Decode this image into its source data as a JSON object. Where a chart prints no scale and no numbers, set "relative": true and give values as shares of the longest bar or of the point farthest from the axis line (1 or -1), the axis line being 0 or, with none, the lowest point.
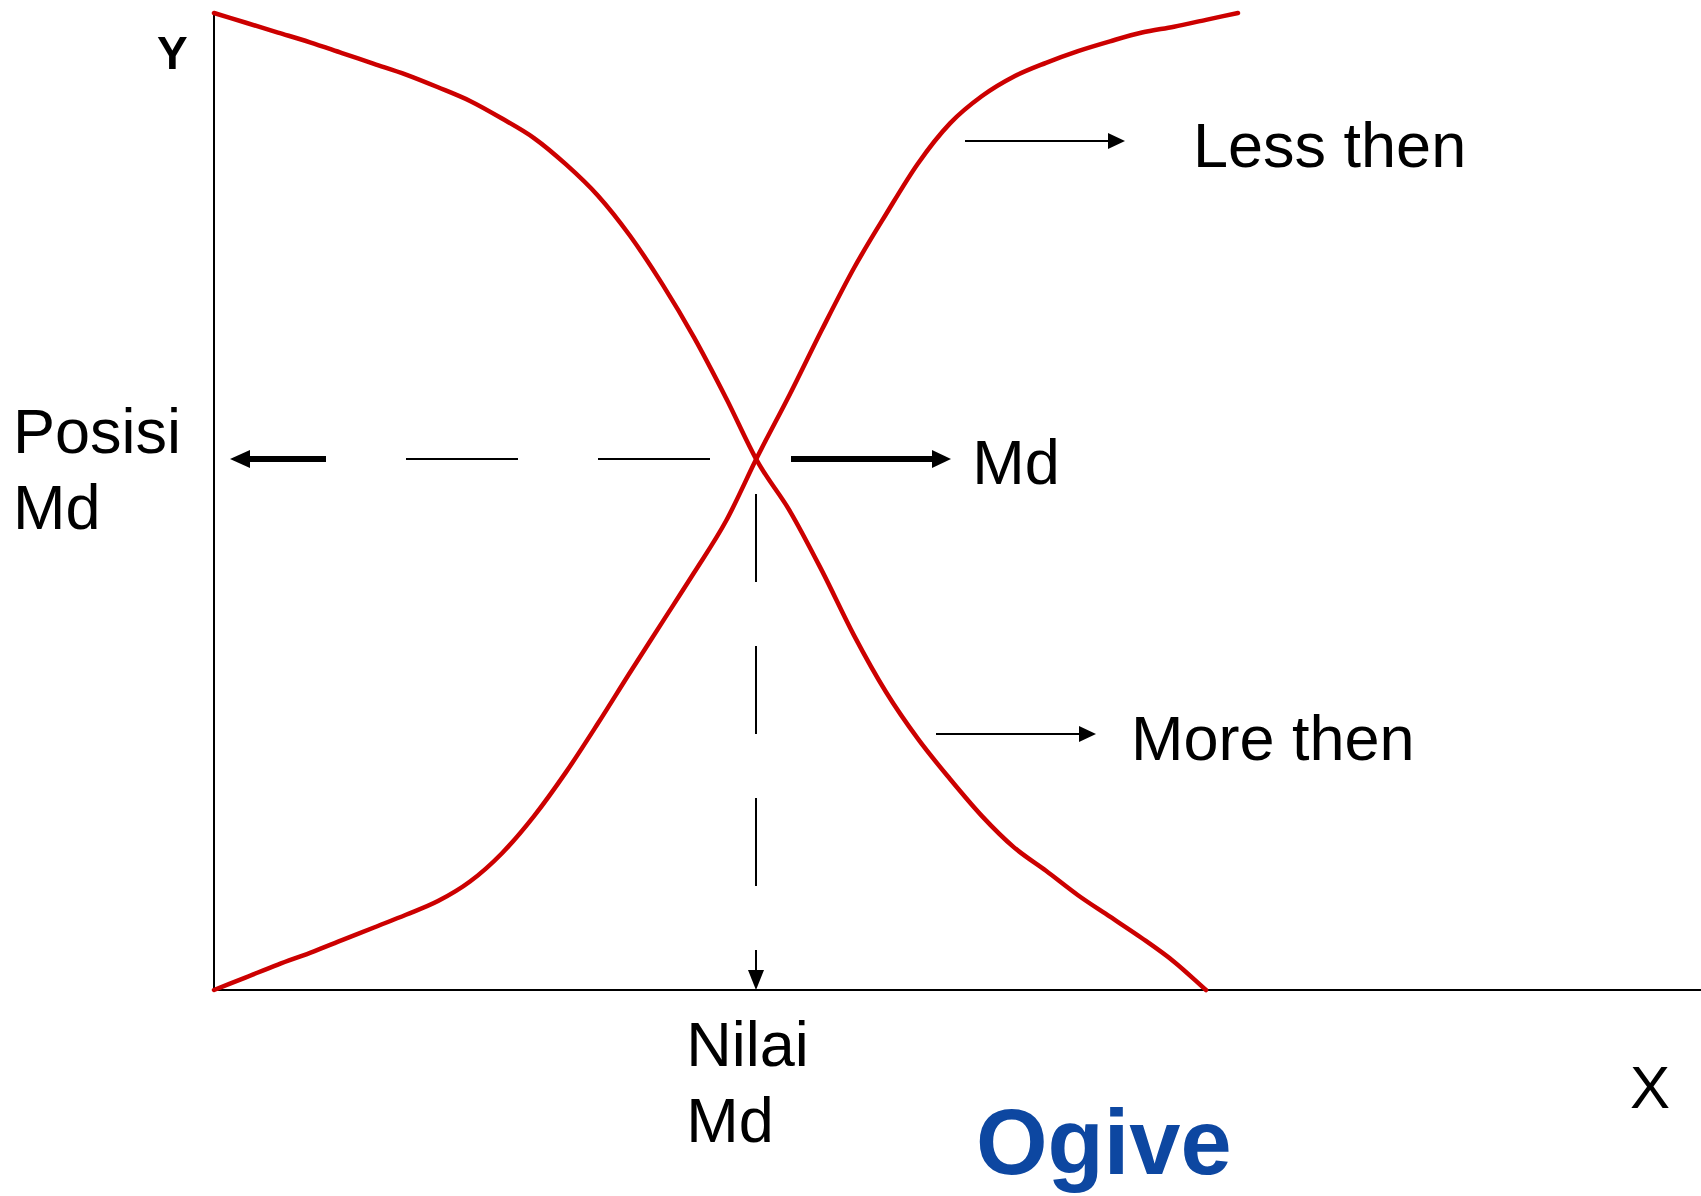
{
  "chart_data": {
    "type": "line",
    "title": "Ogive",
    "xlabel": "X",
    "ylabel": "Y",
    "relative": true,
    "categories": [
      null,
      null,
      null,
      null,
      null,
      null,
      null,
      null,
      null,
      null,
      null,
      null,
      null,
      null,
      null,
      null,
      null,
      null,
      null,
      null,
      null,
      null,
      null,
      null,
      null,
      null,
      null,
      null,
      null,
      null,
      null,
      null,
      null,
      null,
      null,
      null,
      null,
      null,
      null,
      null,
      null,
      null,
      null,
      null,
      null,
      null,
      null
    ],
    "series": [
      {
        "name": "Less then",
        "color": "#cc0000",
        "values": [
          0,
          0.013,
          0.026,
          0.038,
          0.051,
          0.064,
          0.077,
          0.091,
          0.111,
          0.14,
          0.178,
          0.223,
          0.273,
          0.325,
          0.376,
          0.427,
          0.48,
          0.547,
          0.61,
          0.676,
          0.739,
          0.794,
          0.846,
          0.887,
          0.915,
          0.935,
          0.949,
          0.961,
          0.971,
          0.98,
          0.986,
          0.993,
          1,
          null,
          null,
          null,
          null,
          null,
          null,
          null,
          null,
          null,
          null,
          null,
          null,
          null,
          null
        ]
      },
      {
        "name": "More then",
        "color": "#cc0000",
        "values": [
          1,
          0.99,
          0.98,
          0.97,
          0.959,
          0.948,
          0.937,
          0.924,
          0.91,
          0.892,
          0.872,
          0.845,
          0.813,
          0.772,
          0.723,
          0.668,
          0.606,
          0.54,
          0.49,
          0.429,
          0.363,
          0.305,
          0.257,
          0.216,
          0.178,
          0.146,
          0.122,
          0.097,
          0.075,
          0.053,
          0.029,
          0,
          null,
          null,
          null,
          null,
          null,
          null,
          null,
          null,
          null,
          null,
          null,
          null,
          null,
          null,
          null
        ]
      }
    ],
    "annotations": [
      "Posisi Md",
      "Md",
      "Nilai Md"
    ]
  }
}
